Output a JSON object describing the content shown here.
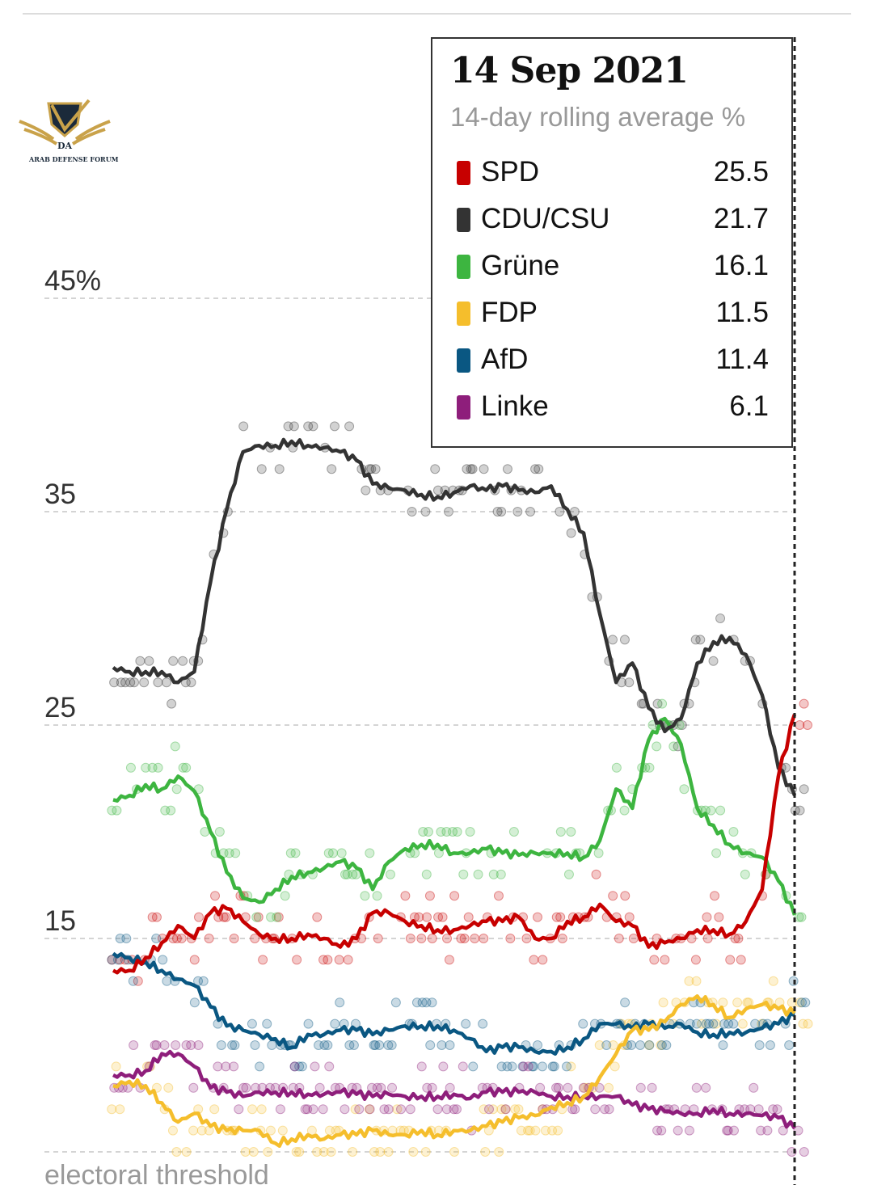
{
  "chart_data": {
    "type": "line",
    "title": "14 Sep 2021",
    "subtitle": "14-day rolling average %",
    "ylabel": "",
    "xlabel": "",
    "ylim": [
      5,
      45
    ],
    "yticks": [
      {
        "value": 45,
        "label": "45%"
      },
      {
        "value": 35,
        "label": "35"
      },
      {
        "value": 25,
        "label": "25"
      },
      {
        "value": 15,
        "label": "15"
      },
      {
        "value": 5,
        "label": "electoral threshold"
      }
    ],
    "grid": true,
    "legend_position": "top-right",
    "x_points": 43,
    "series": [
      {
        "name": "SPD",
        "color": "#c70000",
        "latest": "25.5",
        "values": [
          13.5,
          13.5,
          14.1,
          14.8,
          15.6,
          15.0,
          16.2,
          16.4,
          15.8,
          15.2,
          15.0,
          15.0,
          15.2,
          15.0,
          14.6,
          15.0,
          16.2,
          16.2,
          15.8,
          15.6,
          15.4,
          15.4,
          15.6,
          15.8,
          15.8,
          16.0,
          15.0,
          15.0,
          15.8,
          16.0,
          16.6,
          15.8,
          15.6,
          14.6,
          14.8,
          15.0,
          15.4,
          15.4,
          15.2,
          15.8,
          17.3,
          22.6,
          25.5
        ]
      },
      {
        "name": "CDU/CSU",
        "color": "#333333",
        "latest": "21.7",
        "values": [
          27.7,
          27.5,
          27.5,
          27.5,
          27.0,
          27.5,
          31.7,
          35.1,
          37.8,
          38.1,
          38.1,
          38.3,
          38.1,
          38.0,
          37.8,
          37.4,
          36.3,
          36.1,
          36.0,
          35.8,
          35.7,
          35.9,
          36.2,
          36.0,
          36.2,
          36.0,
          35.9,
          36.2,
          35.1,
          34.0,
          30.2,
          27.0,
          27.9,
          25.8,
          24.7,
          25.3,
          27.9,
          28.9,
          29.1,
          28.3,
          26.4,
          23.0,
          21.7
        ]
      },
      {
        "name": "Grüne",
        "color": "#3db540",
        "latest": "16.1",
        "values": [
          21.5,
          21.7,
          22.2,
          22.0,
          22.6,
          21.9,
          20.0,
          18.1,
          16.9,
          16.7,
          17.3,
          17.9,
          18.1,
          18.3,
          18.6,
          18.3,
          17.3,
          18.6,
          19.2,
          19.4,
          19.4,
          19.0,
          19.0,
          19.2,
          19.0,
          18.9,
          19.0,
          19.0,
          19.0,
          18.8,
          19.6,
          22.0,
          21.1,
          24.3,
          25.3,
          24.1,
          21.1,
          20.3,
          19.4,
          19.0,
          18.8,
          17.7,
          16.1
        ]
      },
      {
        "name": "FDP",
        "color": "#f5be2c",
        "latest": "11.5",
        "values": [
          8.1,
          8.3,
          8.1,
          7.3,
          6.4,
          6.8,
          6.2,
          6.0,
          6.0,
          6.0,
          5.4,
          5.6,
          5.8,
          5.6,
          5.8,
          5.8,
          6.0,
          5.8,
          5.8,
          6.0,
          5.8,
          6.0,
          6.0,
          6.2,
          6.4,
          6.6,
          6.7,
          7.1,
          7.3,
          7.6,
          8.5,
          9.6,
          10.7,
          10.7,
          11.1,
          11.9,
          12.3,
          11.9,
          11.3,
          11.7,
          11.9,
          11.7,
          11.5
        ]
      },
      {
        "name": "AfD",
        "color": "#0a5782",
        "latest": "11.4",
        "values": [
          14.3,
          14.1,
          13.9,
          13.5,
          13.1,
          12.8,
          11.8,
          10.9,
          10.7,
          10.5,
          10.3,
          9.9,
          10.5,
          10.5,
          10.7,
          10.7,
          10.5,
          10.7,
          10.9,
          10.9,
          10.9,
          10.7,
          10.3,
          9.7,
          9.9,
          9.9,
          9.7,
          9.7,
          9.9,
          10.3,
          11.0,
          11.0,
          10.8,
          11.0,
          10.8,
          11.0,
          10.6,
          10.5,
          10.6,
          10.6,
          10.8,
          11.0,
          11.4
        ]
      },
      {
        "name": "Linke",
        "color": "#8e1e7b",
        "latest": "6.1",
        "values": [
          8.6,
          8.6,
          8.8,
          9.6,
          9.6,
          9.0,
          8.0,
          7.8,
          7.6,
          7.8,
          7.8,
          7.8,
          7.7,
          7.7,
          7.8,
          7.7,
          7.6,
          7.7,
          7.6,
          7.6,
          7.6,
          7.7,
          7.5,
          7.8,
          7.8,
          7.8,
          7.8,
          7.6,
          7.6,
          7.6,
          7.6,
          7.6,
          7.2,
          7.0,
          6.9,
          6.8,
          6.8,
          7.0,
          6.8,
          6.8,
          6.7,
          6.6,
          6.1
        ]
      }
    ]
  },
  "watermark": {
    "text": "ARAB DEFENSE FORUM",
    "mark": "DA"
  }
}
